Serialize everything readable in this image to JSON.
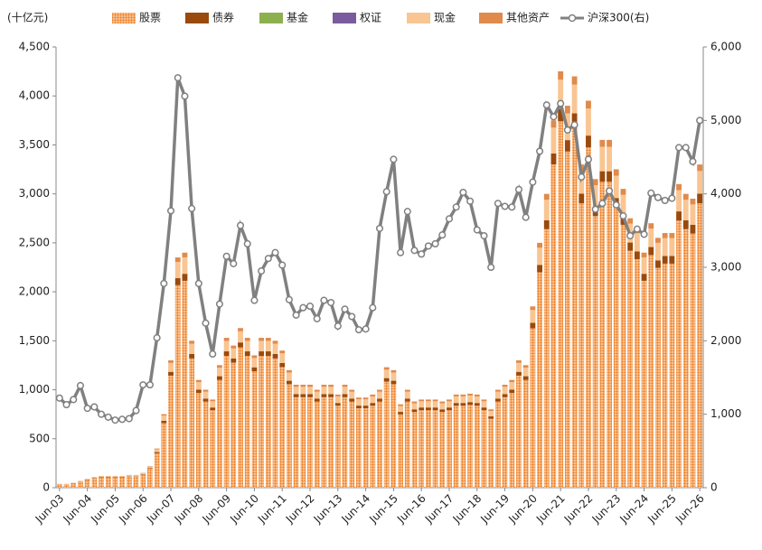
{
  "chart_data": {
    "type": "stacked-bar-line",
    "y_label": "(十亿元)",
    "categories": [
      "Jun-03",
      null,
      null,
      null,
      "Jun-04",
      null,
      null,
      null,
      "Jun-05",
      null,
      null,
      null,
      "Jun-06",
      null,
      null,
      null,
      "Jun-07",
      null,
      null,
      null,
      "Jun-08",
      null,
      null,
      null,
      "Jun-09",
      null,
      null,
      null,
      "Jun-10",
      null,
      null,
      null,
      "Jun-11",
      null,
      null,
      null,
      "Jun-12",
      null,
      null,
      null,
      "Jun-13",
      null,
      null,
      null,
      "Jun-14",
      null,
      null,
      null,
      "Jun-15",
      null,
      null,
      null,
      "Jun-16",
      null,
      null,
      null,
      "Jun-17",
      null,
      null,
      null,
      "Jun-18",
      null,
      null,
      null,
      "Jun-19",
      null,
      null,
      null,
      "Jun-20",
      null,
      null,
      null,
      "Jun-21",
      null,
      null,
      null,
      "Jun-22",
      null,
      null,
      null,
      "Jun-23",
      null,
      null,
      null,
      "Jun-24",
      null,
      null,
      null,
      "Jun-25",
      null,
      null,
      null,
      "Jun-26"
    ],
    "series": [
      {
        "name": "股票",
        "color": "#ee7d22",
        "pattern": "dots",
        "values": [
          35,
          35,
          44,
          62,
          79,
          97,
          106,
          106,
          106,
          106,
          114,
          114,
          132,
          194,
          352,
          660,
          1144,
          2068,
          2112,
          1320,
          968,
          880,
          792,
          1100,
          1346,
          1276,
          1434,
          1346,
          1188,
          1346,
          1346,
          1320,
          1232,
          1056,
          924,
          924,
          924,
          880,
          924,
          924,
          836,
          924,
          880,
          810,
          810,
          836,
          880,
          1082,
          1056,
          748,
          880,
          774,
          792,
          792,
          792,
          774,
          792,
          836,
          836,
          845,
          836,
          792,
          704,
          880,
          924,
          968,
          1144,
          1100,
          1628,
          2200,
          2640,
          3300,
          3740,
          3432,
          3696,
          2904,
          3476,
          2772,
          3124,
          3124,
          2860,
          2684,
          2420,
          2332,
          2112,
          2376,
          2244,
          2288,
          2288,
          2728,
          2640,
          2596,
          2904
        ]
      },
      {
        "name": "债券",
        "color": "#9a4a0c",
        "values": [
          1,
          1,
          2,
          2,
          3,
          3,
          4,
          4,
          4,
          4,
          4,
          4,
          5,
          7,
          12,
          23,
          39,
          71,
          72,
          45,
          33,
          30,
          27,
          38,
          46,
          44,
          49,
          46,
          41,
          46,
          46,
          45,
          42,
          36,
          32,
          32,
          32,
          30,
          32,
          32,
          29,
          32,
          30,
          28,
          28,
          29,
          30,
          37,
          36,
          26,
          30,
          26,
          27,
          27,
          27,
          26,
          27,
          29,
          29,
          29,
          29,
          27,
          24,
          30,
          32,
          33,
          39,
          38,
          56,
          75,
          90,
          113,
          128,
          117,
          126,
          99,
          119,
          95,
          107,
          107,
          98,
          92,
          83,
          80,
          72,
          81,
          77,
          78,
          78,
          93,
          90,
          89,
          99
        ]
      },
      {
        "name": "基金",
        "color": "#8db04f",
        "values": [
          0,
          0,
          0,
          0,
          0,
          0,
          0,
          0,
          0,
          0,
          0,
          0,
          0,
          0,
          0,
          0,
          0,
          0,
          0,
          0,
          0,
          0,
          0,
          0,
          0,
          0,
          0,
          0,
          0,
          0,
          0,
          0,
          0,
          0,
          0,
          0,
          0,
          0,
          0,
          0,
          0,
          0,
          0,
          0,
          0,
          0,
          0,
          0,
          0,
          0,
          0,
          0,
          0,
          0,
          0,
          0,
          0,
          0,
          0,
          0,
          0,
          0,
          0,
          0,
          0,
          0,
          0,
          0,
          0,
          0,
          0,
          0,
          0,
          0,
          0,
          0,
          0,
          0,
          0,
          0,
          0,
          0,
          0,
          0,
          0,
          0,
          0,
          0,
          0,
          0,
          0,
          0,
          0
        ]
      },
      {
        "name": "权证",
        "color": "#7a5b9e",
        "values": [
          0,
          0,
          0,
          0,
          0,
          0,
          0,
          0,
          0,
          0,
          0,
          0,
          0,
          0,
          0,
          0,
          0,
          0,
          0,
          0,
          0,
          0,
          0,
          0,
          0,
          0,
          0,
          0,
          0,
          0,
          0,
          0,
          0,
          0,
          0,
          0,
          0,
          0,
          0,
          0,
          0,
          0,
          0,
          0,
          0,
          0,
          0,
          0,
          0,
          0,
          0,
          0,
          0,
          0,
          0,
          0,
          0,
          0,
          0,
          0,
          0,
          0,
          0,
          0,
          0,
          0,
          0,
          0,
          0,
          0,
          0,
          0,
          0,
          0,
          0,
          0,
          0,
          0,
          0,
          0,
          0,
          0,
          0,
          0,
          0,
          0,
          0,
          0,
          0,
          0,
          0,
          0,
          0
        ]
      },
      {
        "name": "现金",
        "color": "#f9c592",
        "values": [
          3,
          3,
          3,
          5,
          6,
          8,
          8,
          8,
          8,
          8,
          9,
          9,
          11,
          15,
          28,
          53,
          91,
          165,
          168,
          105,
          77,
          70,
          63,
          88,
          107,
          102,
          114,
          107,
          95,
          107,
          107,
          105,
          98,
          84,
          74,
          74,
          74,
          70,
          74,
          74,
          67,
          74,
          70,
          64,
          64,
          67,
          70,
          86,
          84,
          60,
          70,
          62,
          63,
          63,
          63,
          62,
          63,
          67,
          67,
          67,
          67,
          63,
          56,
          70,
          74,
          77,
          91,
          88,
          130,
          175,
          210,
          263,
          298,
          273,
          294,
          231,
          277,
          221,
          249,
          249,
          228,
          214,
          193,
          186,
          168,
          189,
          179,
          182,
          182,
          217,
          210,
          207,
          231
        ]
      },
      {
        "name": "其他资产",
        "color": "#e08a4c",
        "values": [
          1,
          1,
          1,
          1,
          2,
          2,
          2,
          2,
          2,
          2,
          3,
          3,
          3,
          4,
          8,
          15,
          26,
          47,
          48,
          30,
          22,
          20,
          18,
          25,
          31,
          29,
          33,
          31,
          27,
          31,
          31,
          30,
          28,
          24,
          21,
          21,
          21,
          20,
          21,
          21,
          19,
          21,
          20,
          18,
          18,
          19,
          20,
          25,
          24,
          17,
          20,
          18,
          18,
          18,
          18,
          18,
          18,
          19,
          19,
          19,
          19,
          18,
          16,
          20,
          21,
          22,
          26,
          25,
          37,
          50,
          60,
          75,
          85,
          78,
          84,
          66,
          79,
          63,
          71,
          71,
          65,
          61,
          55,
          53,
          48,
          54,
          51,
          52,
          52,
          62,
          60,
          59,
          66
        ]
      },
      {
        "name": "沪深300(右)",
        "color": "#808080",
        "type": "line",
        "axis": "y2",
        "values": [
          1220,
          1130,
          1200,
          1390,
          1080,
          1100,
          1000,
          960,
          920,
          930,
          940,
          1050,
          1400,
          1400,
          2040,
          2780,
          3770,
          5580,
          5330,
          3800,
          2780,
          2240,
          1820,
          2500,
          3150,
          3050,
          3570,
          3320,
          2550,
          2950,
          3120,
          3200,
          3030,
          2560,
          2350,
          2450,
          2470,
          2300,
          2550,
          2520,
          2200,
          2430,
          2330,
          2150,
          2160,
          2450,
          3530,
          4030,
          4470,
          3200,
          3760,
          3230,
          3180,
          3290,
          3320,
          3440,
          3660,
          3820,
          4020,
          3900,
          3510,
          3430,
          3000,
          3870,
          3830,
          3820,
          4060,
          3680,
          4160,
          4580,
          5210,
          5050,
          5230,
          4870,
          4940,
          4230,
          4470,
          3790,
          3870,
          4040,
          3850,
          3700,
          3430,
          3520,
          3450,
          4010,
          3950,
          3910,
          3940,
          4630,
          4630,
          4440,
          5000
        ]
      }
    ],
    "ylim": [
      0,
      4500
    ],
    "yticks": [
      0,
      500,
      {
        "value": 1000,
        "label": "1,000"
      },
      {
        "value": 1500,
        "label": "1,500"
      },
      {
        "value": 2000,
        "label": "2,000"
      },
      {
        "value": 2500,
        "label": "2,500"
      },
      {
        "value": 3000,
        "label": "3,000"
      },
      {
        "value": 3500,
        "label": "3,500"
      },
      {
        "value": 4000,
        "label": "4,000"
      },
      {
        "value": 4500,
        "label": "4,500"
      }
    ],
    "y2lim": [
      0,
      6000
    ],
    "y2ticks": [
      0,
      {
        "value": 1000,
        "label": "1,000"
      },
      {
        "value": 2000,
        "label": "2,000"
      },
      {
        "value": 3000,
        "label": "3,000"
      },
      {
        "value": 4000,
        "label": "4,000"
      },
      {
        "value": 5000,
        "label": "5,000"
      },
      {
        "value": 6000,
        "label": "6,000"
      }
    ],
    "grid": false
  }
}
